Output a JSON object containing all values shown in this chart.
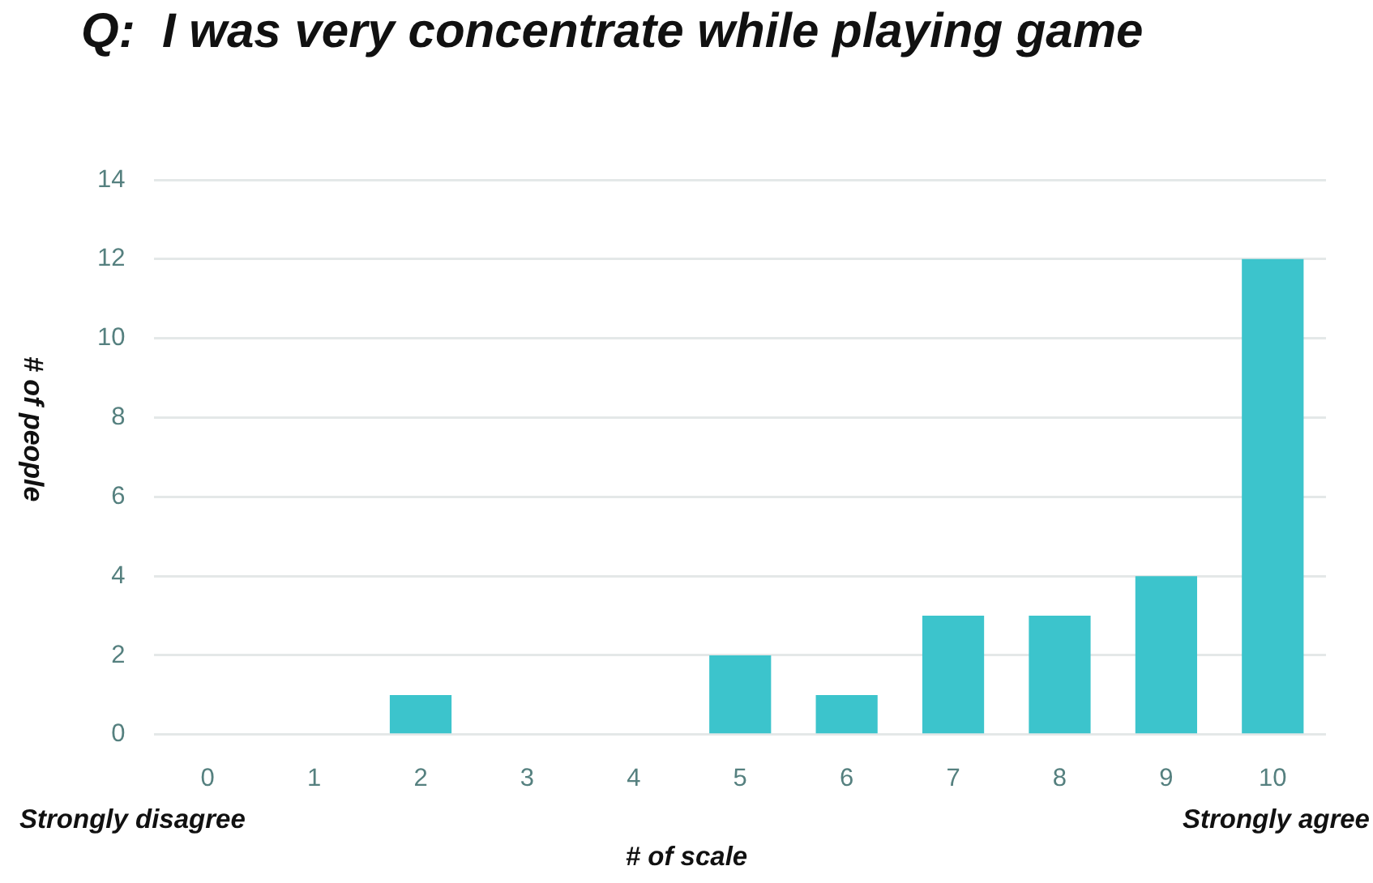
{
  "chart_data": {
    "type": "bar",
    "title": "Q:  I was very concentrate while playing game",
    "xlabel": "# of scale",
    "ylabel": "# of people",
    "annotations": [
      "Strongly disagree",
      "Strongly agree"
    ],
    "categories": [
      "0",
      "1",
      "2",
      "3",
      "4",
      "5",
      "6",
      "7",
      "8",
      "9",
      "10"
    ],
    "values": [
      0,
      0,
      1,
      0,
      0,
      2,
      1,
      3,
      3,
      4,
      12
    ],
    "color": "#3cc4cc",
    "ylim": [
      0,
      14
    ],
    "yticks": [
      0,
      2,
      4,
      6,
      8,
      10,
      12,
      14
    ],
    "grid": "y"
  }
}
